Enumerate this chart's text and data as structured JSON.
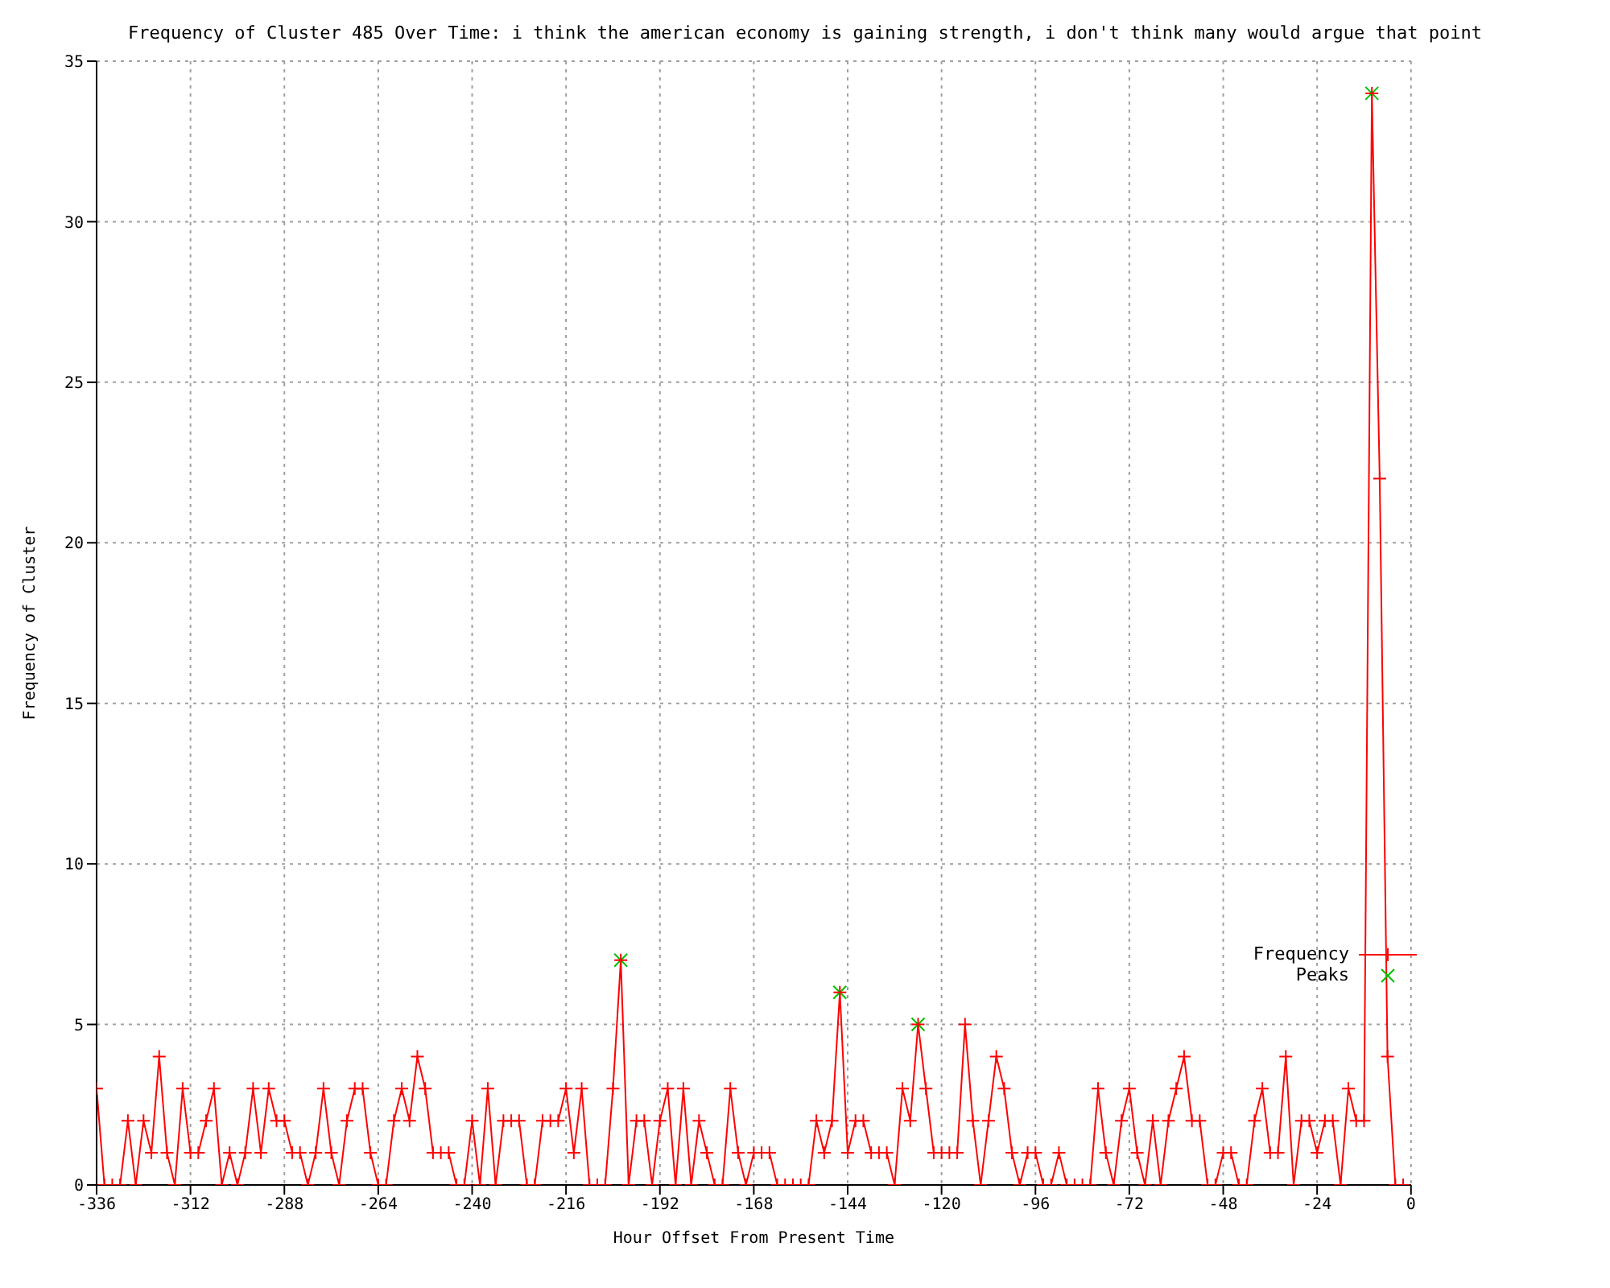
{
  "chart_data": {
    "type": "line",
    "title": "Frequency of Cluster 485 Over Time: i think the american economy is gaining strength, i don't think many would argue that point",
    "xlabel": "Hour Offset From Present Time",
    "ylabel": "Frequency of Cluster",
    "series": [
      {
        "name": "Frequency",
        "color": "#ff0000",
        "marker": "cross",
        "line_style": "solid",
        "x": [
          -336,
          -334,
          -332,
          -330,
          -328,
          -326,
          -324,
          -322,
          -320,
          -318,
          -316,
          -314,
          -312,
          -310,
          -308,
          -306,
          -304,
          -302,
          -300,
          -298,
          -296,
          -294,
          -292,
          -290,
          -288,
          -286,
          -284,
          -282,
          -280,
          -278,
          -276,
          -274,
          -272,
          -270,
          -268,
          -266,
          -264,
          -262,
          -260,
          -258,
          -256,
          -254,
          -252,
          -250,
          -248,
          -246,
          -244,
          -242,
          -240,
          -238,
          -236,
          -234,
          -232,
          -230,
          -228,
          -226,
          -224,
          -222,
          -220,
          -218,
          -216,
          -214,
          -212,
          -210,
          -208,
          -206,
          -204,
          -202,
          -200,
          -198,
          -196,
          -194,
          -192,
          -190,
          -188,
          -186,
          -184,
          -182,
          -180,
          -178,
          -176,
          -174,
          -172,
          -170,
          -168,
          -166,
          -164,
          -162,
          -160,
          -158,
          -156,
          -154,
          -152,
          -150,
          -148,
          -146,
          -144,
          -142,
          -140,
          -138,
          -136,
          -134,
          -132,
          -130,
          -128,
          -126,
          -124,
          -122,
          -120,
          -118,
          -116,
          -114,
          -112,
          -110,
          -108,
          -106,
          -104,
          -102,
          -100,
          -98,
          -96,
          -94,
          -92,
          -90,
          -88,
          -86,
          -84,
          -82,
          -80,
          -78,
          -76,
          -74,
          -72,
          -70,
          -68,
          -66,
          -64,
          -62,
          -60,
          -58,
          -56,
          -54,
          -52,
          -50,
          -48,
          -46,
          -44,
          -42,
          -40,
          -38,
          -36,
          -34,
          -32,
          -30,
          -28,
          -26,
          -24,
          -22,
          -20,
          -18,
          -16,
          -14,
          -12,
          -10,
          -8,
          -6,
          -4,
          -2
        ],
        "values": [
          3,
          0,
          0,
          0,
          2,
          0,
          2,
          1,
          4,
          1,
          0,
          3,
          1,
          1,
          2,
          3,
          0,
          1,
          0,
          1,
          3,
          1,
          3,
          2,
          2,
          1,
          1,
          0,
          1,
          3,
          1,
          0,
          2,
          3,
          3,
          1,
          0,
          0,
          2,
          3,
          2,
          4,
          3,
          1,
          1,
          1,
          0,
          0,
          2,
          0,
          3,
          0,
          2,
          2,
          2,
          0,
          0,
          2,
          2,
          2,
          3,
          1,
          3,
          0,
          0,
          0,
          3,
          7,
          0,
          2,
          2,
          0,
          2,
          3,
          0,
          3,
          0,
          2,
          1,
          0,
          0,
          3,
          1,
          0,
          1,
          1,
          1,
          0,
          0,
          0,
          0,
          0,
          2,
          1,
          2,
          6,
          1,
          2,
          2,
          1,
          1,
          1,
          0,
          3,
          2,
          5,
          3,
          1,
          1,
          1,
          1,
          5,
          2,
          0,
          2,
          4,
          3,
          1,
          0,
          1,
          1,
          0,
          0,
          1,
          0,
          0,
          0,
          0,
          3,
          1,
          0,
          2,
          3,
          1,
          0,
          2,
          0,
          2,
          3,
          4,
          2,
          2,
          0,
          0,
          1,
          1,
          0,
          0,
          2,
          3,
          1,
          1,
          4,
          0,
          2,
          2,
          1,
          2,
          2,
          0,
          3,
          2,
          2,
          34,
          22,
          4,
          0,
          0
        ]
      },
      {
        "name": "Peaks",
        "type": "scatter",
        "color": "#00c000",
        "marker": "cross",
        "x": [
          -202,
          -146,
          -126,
          -10
        ],
        "values": [
          7,
          6,
          5,
          34
        ]
      }
    ],
    "xlim": [
      -336,
      0
    ],
    "xticks": [
      -336,
      -312,
      -288,
      -264,
      -240,
      -216,
      -192,
      -168,
      -144,
      -120,
      -96,
      -72,
      -48,
      -24,
      0
    ],
    "ylim": [
      0,
      35
    ],
    "yticks": [
      0,
      5,
      10,
      15,
      20,
      25,
      30,
      35
    ],
    "grid": true,
    "legend": "bottom right"
  }
}
